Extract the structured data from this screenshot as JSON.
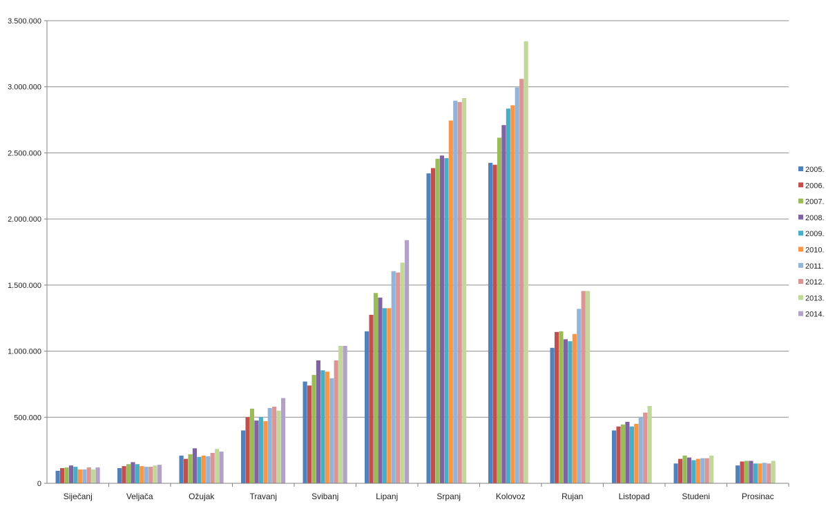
{
  "chart_data": {
    "type": "bar",
    "title": "",
    "xlabel": "",
    "ylabel": "",
    "ylim": [
      0,
      3500000
    ],
    "y_ticks": [
      0,
      500000,
      1000000,
      1500000,
      2000000,
      2500000,
      3000000,
      3500000
    ],
    "y_tick_labels": [
      "0",
      "500.000",
      "1.000.000",
      "1.500.000",
      "2.000.000",
      "2.500.000",
      "3.000.000",
      "3.500.000"
    ],
    "grid": true,
    "legend_position": "right",
    "categories": [
      "Siječanj",
      "Veljača",
      "Ožujak",
      "Travanj",
      "Svibanj",
      "Lipanj",
      "Srpanj",
      "Kolovoz",
      "Rujan",
      "Listopad",
      "Studeni",
      "Prosinac"
    ],
    "series": [
      {
        "name": "2005.",
        "color": "#4f81bd",
        "values": [
          95000,
          115000,
          210000,
          400000,
          770000,
          1150000,
          2345000,
          2425000,
          1025000,
          400000,
          150000,
          135000
        ]
      },
      {
        "name": "2006.",
        "color": "#c0504d",
        "values": [
          115000,
          130000,
          185000,
          500000,
          740000,
          1275000,
          2385000,
          2410000,
          1145000,
          430000,
          185000,
          165000
        ]
      },
      {
        "name": "2007.",
        "color": "#9bbb59",
        "values": [
          120000,
          145000,
          220000,
          565000,
          820000,
          1440000,
          2455000,
          2615000,
          1150000,
          445000,
          210000,
          170000
        ]
      },
      {
        "name": "2008.",
        "color": "#8064a2",
        "values": [
          135000,
          160000,
          265000,
          475000,
          930000,
          1405000,
          2480000,
          2710000,
          1090000,
          465000,
          195000,
          170000
        ]
      },
      {
        "name": "2009.",
        "color": "#4bacc6",
        "values": [
          125000,
          145000,
          200000,
          500000,
          855000,
          1325000,
          2460000,
          2835000,
          1075000,
          430000,
          175000,
          150000
        ]
      },
      {
        "name": "2010.",
        "color": "#f79646",
        "values": [
          105000,
          130000,
          210000,
          470000,
          845000,
          1325000,
          2745000,
          2860000,
          1130000,
          450000,
          185000,
          150000
        ]
      },
      {
        "name": "2011.",
        "color": "#95b3d7",
        "values": [
          105000,
          125000,
          205000,
          570000,
          795000,
          1605000,
          2895000,
          2995000,
          1320000,
          500000,
          190000,
          155000
        ]
      },
      {
        "name": "2012.",
        "color": "#d99694",
        "values": [
          120000,
          125000,
          230000,
          580000,
          930000,
          1595000,
          2885000,
          3060000,
          1455000,
          535000,
          190000,
          150000
        ]
      },
      {
        "name": "2013.",
        "color": "#c3d69b",
        "values": [
          105000,
          135000,
          260000,
          550000,
          1040000,
          1670000,
          2915000,
          3345000,
          1455000,
          585000,
          210000,
          170000
        ]
      },
      {
        "name": "2014.",
        "color": "#b3a2c7",
        "values": [
          120000,
          140000,
          240000,
          645000,
          1040000,
          1840000,
          null,
          null,
          null,
          null,
          null,
          null
        ]
      }
    ]
  }
}
